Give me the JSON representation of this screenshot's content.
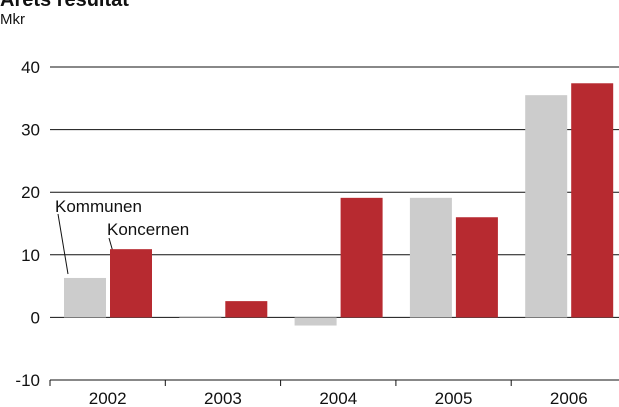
{
  "chart_data": {
    "type": "bar",
    "title": "Årets resultat",
    "subtitle": "Mkr",
    "categories": [
      "2002",
      "2003",
      "2004",
      "2005",
      "2006"
    ],
    "series": [
      {
        "name": "Kommunen",
        "color": "#cccccc",
        "values": [
          6.3,
          0.2,
          -1.3,
          19.1,
          35.5
        ]
      },
      {
        "name": "Koncernen",
        "color": "#b72a30",
        "values": [
          10.9,
          2.6,
          19.1,
          16.0,
          37.4
        ]
      }
    ],
    "ylim": [
      -10,
      40
    ],
    "yticks": [
      -10,
      0,
      10,
      20,
      30,
      40
    ],
    "grid": true
  }
}
